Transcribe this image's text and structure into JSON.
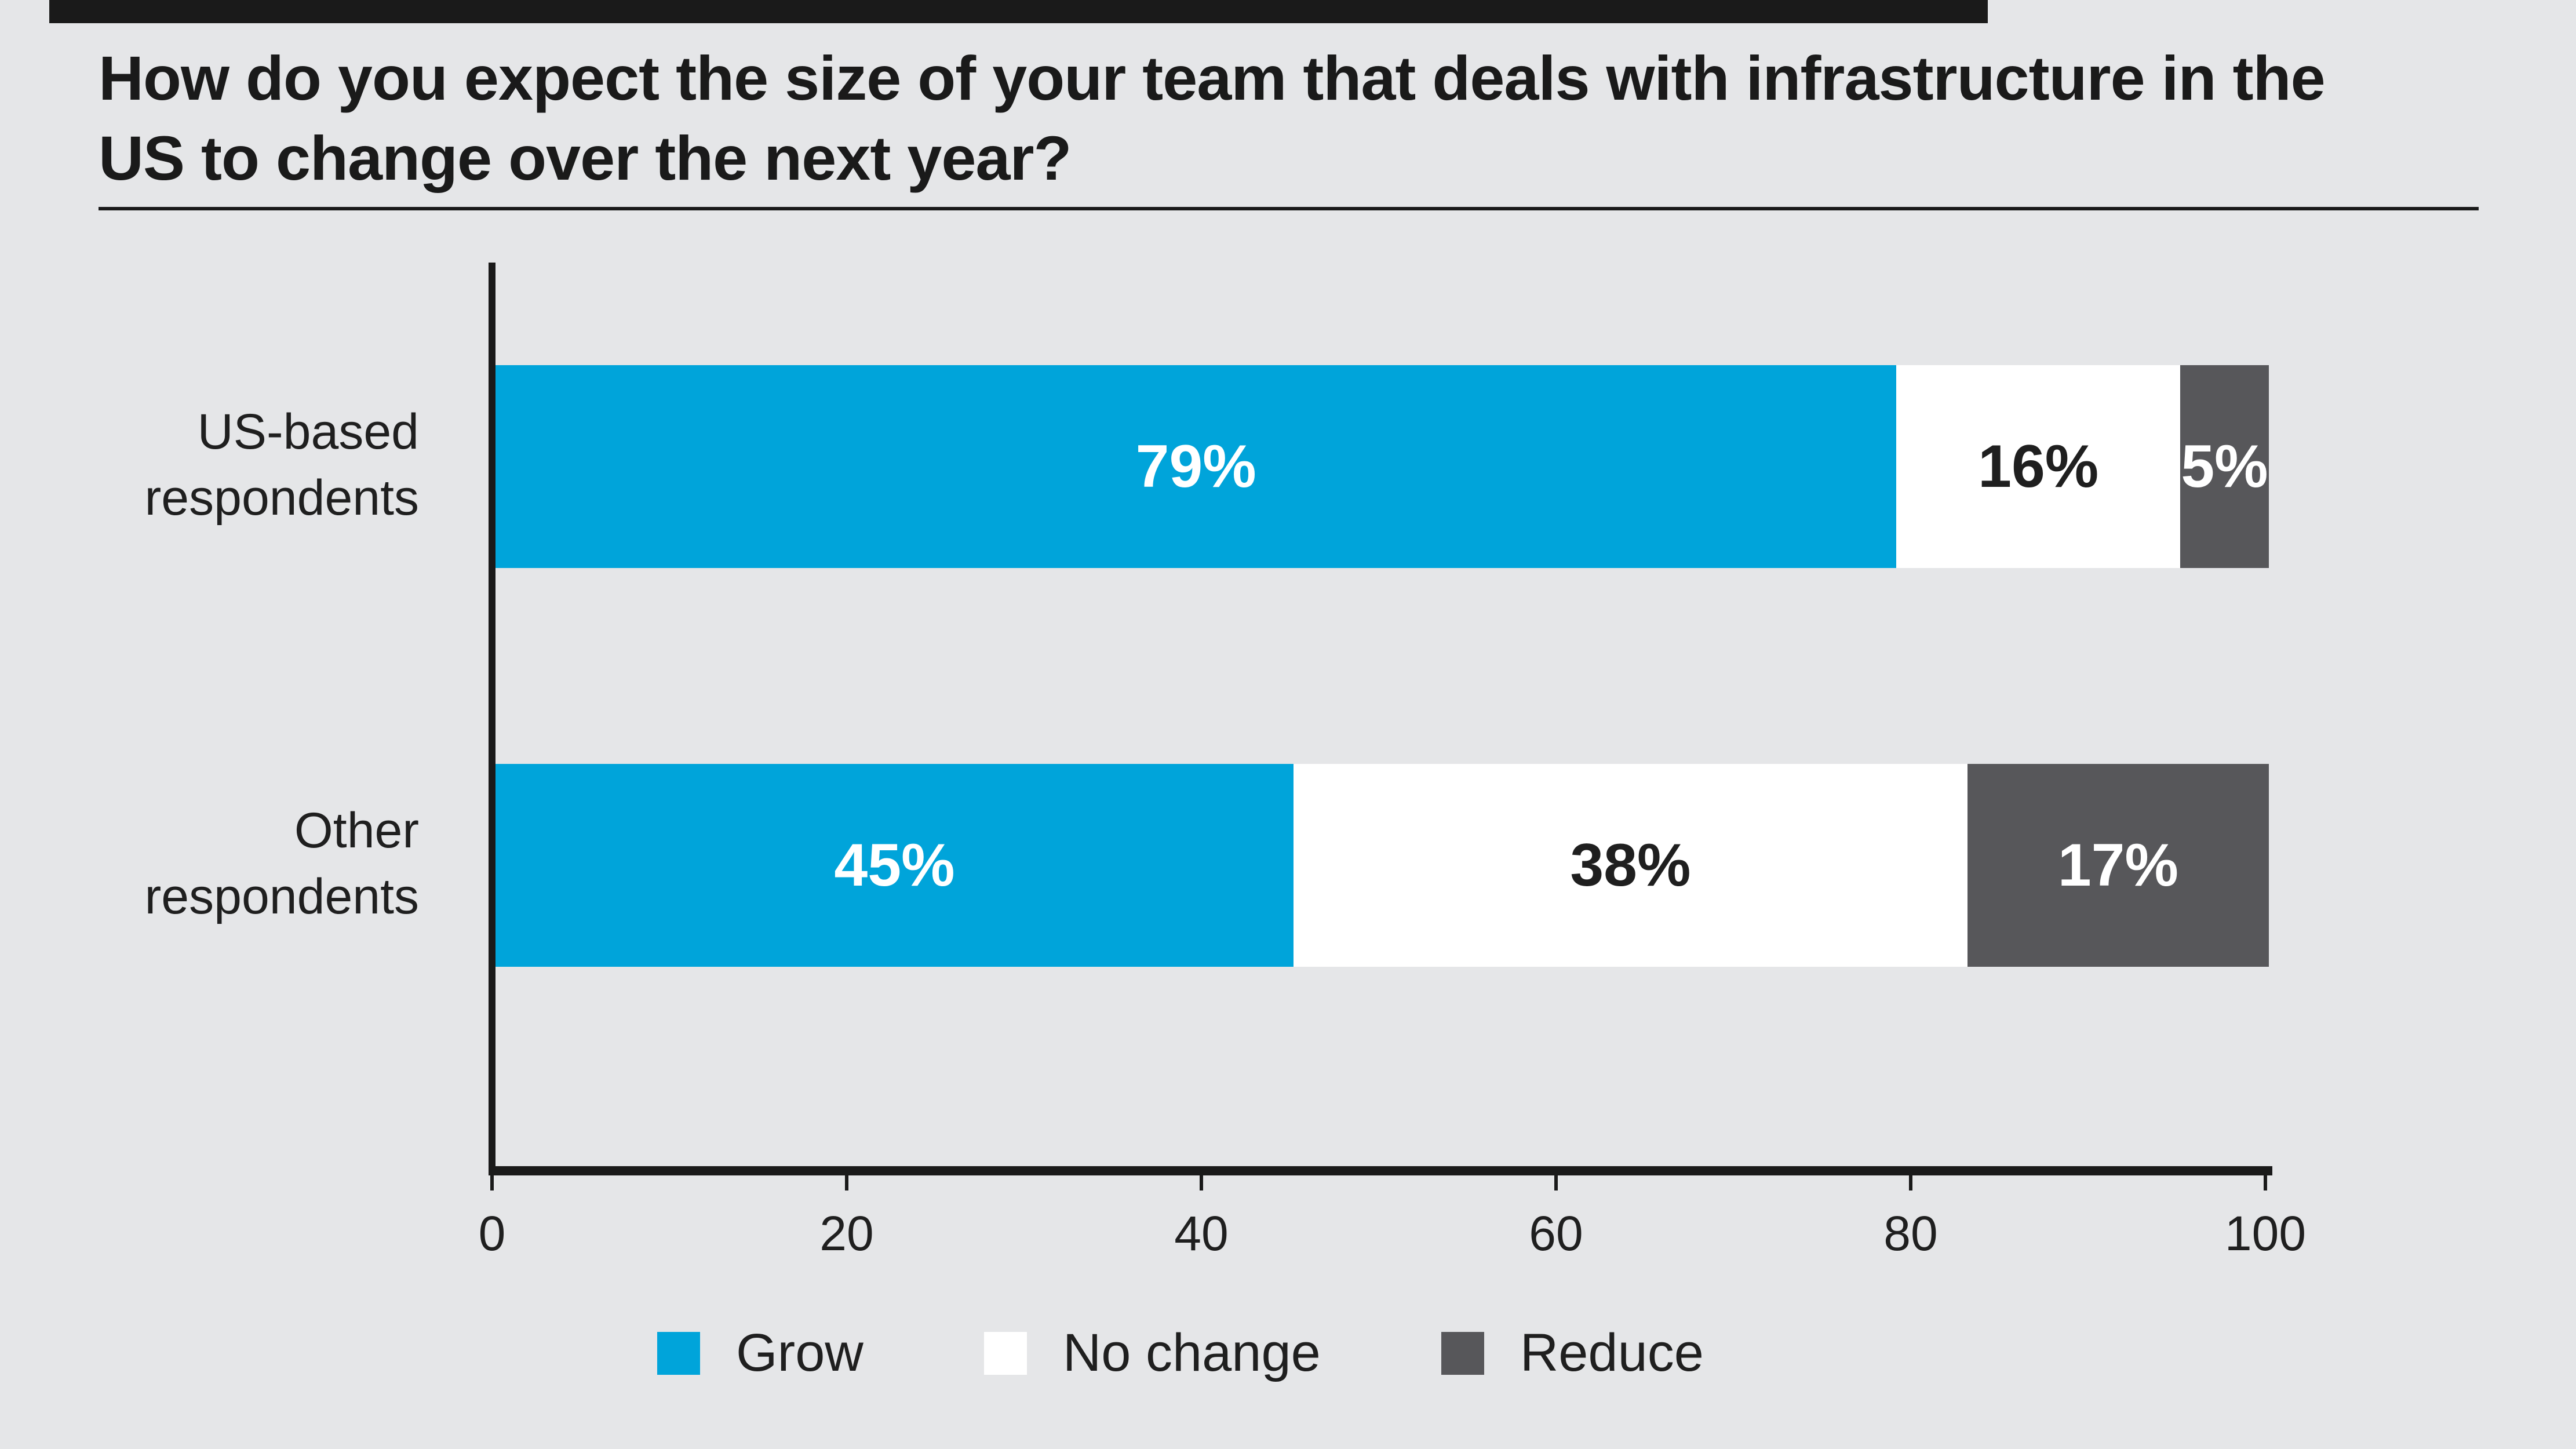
{
  "title": {
    "line1": "How do you expect the size of your team that deals with infrastructure in the",
    "line2": "US to change over the next year?"
  },
  "colors": {
    "background": "#E5E6E8",
    "accent_blue": "#00A4DA",
    "dark_gray": "#57575A",
    "white": "#FFFFFF",
    "text_black": "#1F1F1F",
    "rule_black": "#1A1A1A"
  },
  "x_tick_labels": [
    "0",
    "20",
    "40",
    "60",
    "80",
    "100"
  ],
  "chart_data": {
    "type": "bar",
    "orientation": "horizontal",
    "stacked": true,
    "title": "How do you expect the size of your team that deals with infrastructure in the US to change over the next year?",
    "categories": [
      "US-based respondents",
      "Other respondents"
    ],
    "series": [
      {
        "name": "Grow",
        "color": "#00A4DA",
        "label_color": "#FFFFFF",
        "values": [
          79,
          45
        ],
        "labels": [
          "79%",
          "45%"
        ]
      },
      {
        "name": "No change",
        "color": "#FFFFFF",
        "label_color": "#1F1F1F",
        "values": [
          16,
          38
        ],
        "labels": [
          "16%",
          "38%"
        ]
      },
      {
        "name": "Reduce",
        "color": "#57575A",
        "label_color": "#FFFFFF",
        "values": [
          5,
          17
        ],
        "labels": [
          "5%",
          "17%"
        ]
      }
    ],
    "x_ticks": [
      0,
      20,
      40,
      60,
      80,
      100
    ],
    "xlim": [
      0,
      100
    ],
    "grid": false,
    "legend_position": "bottom",
    "value_labels_inside_bars": true
  }
}
